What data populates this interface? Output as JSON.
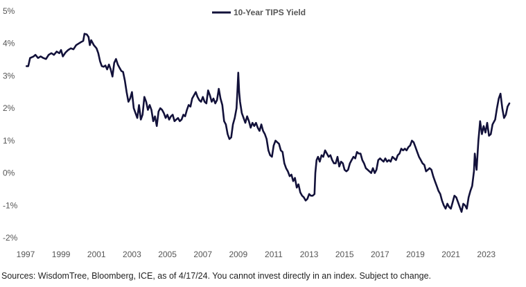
{
  "source_note": "Sources: WisdomTree, Bloomberg, ICE, as of 4/17/24. You cannot invest directly in an index. Subject to change.",
  "colors": {
    "line": "#12113a",
    "text": "#555555"
  },
  "chart_data": {
    "type": "line",
    "title": "",
    "xlabel": "",
    "ylabel": "",
    "legend": {
      "placement": "top-center"
    },
    "grid": false,
    "xlim": [
      1997,
      2024.3
    ],
    "ylim": [
      -2,
      5
    ],
    "x_ticks": [
      1997,
      1999,
      2001,
      2003,
      2005,
      2007,
      2009,
      2011,
      2013,
      2015,
      2017,
      2019,
      2021,
      2023
    ],
    "x_tick_labels": [
      "1997",
      "1999",
      "2001",
      "2003",
      "2005",
      "2007",
      "2009",
      "2011",
      "2013",
      "2015",
      "2017",
      "2019",
      "2021",
      "2023"
    ],
    "y_ticks": [
      -2,
      -1,
      0,
      1,
      2,
      3,
      4,
      5
    ],
    "y_tick_labels": [
      "-2%",
      "-1%",
      "0%",
      "1%",
      "2%",
      "3%",
      "4%",
      "5%"
    ],
    "series": [
      {
        "name": "10-Year TIPS Yield",
        "color": "#12113a",
        "points": [
          [
            1997.05,
            3.3
          ],
          [
            1997.15,
            3.3
          ],
          [
            1997.25,
            3.55
          ],
          [
            1997.45,
            3.6
          ],
          [
            1997.55,
            3.65
          ],
          [
            1997.7,
            3.55
          ],
          [
            1997.85,
            3.6
          ],
          [
            1998.0,
            3.55
          ],
          [
            1998.15,
            3.52
          ],
          [
            1998.3,
            3.65
          ],
          [
            1998.45,
            3.7
          ],
          [
            1998.6,
            3.65
          ],
          [
            1998.75,
            3.75
          ],
          [
            1998.9,
            3.7
          ],
          [
            1999.0,
            3.8
          ],
          [
            1999.1,
            3.6
          ],
          [
            1999.25,
            3.72
          ],
          [
            1999.4,
            3.8
          ],
          [
            1999.55,
            3.85
          ],
          [
            1999.7,
            3.82
          ],
          [
            1999.85,
            3.95
          ],
          [
            2000.0,
            4.0
          ],
          [
            2000.15,
            4.05
          ],
          [
            2000.25,
            4.08
          ],
          [
            2000.32,
            4.3
          ],
          [
            2000.45,
            4.28
          ],
          [
            2000.55,
            4.2
          ],
          [
            2000.62,
            3.95
          ],
          [
            2000.7,
            4.1
          ],
          [
            2000.85,
            3.95
          ],
          [
            2001.0,
            3.85
          ],
          [
            2001.1,
            3.7
          ],
          [
            2001.2,
            3.45
          ],
          [
            2001.3,
            3.3
          ],
          [
            2001.4,
            3.28
          ],
          [
            2001.5,
            3.32
          ],
          [
            2001.6,
            3.2
          ],
          [
            2001.7,
            3.35
          ],
          [
            2001.8,
            3.2
          ],
          [
            2001.9,
            2.98
          ],
          [
            2002.0,
            3.4
          ],
          [
            2002.1,
            3.52
          ],
          [
            2002.2,
            3.35
          ],
          [
            2002.3,
            3.25
          ],
          [
            2002.4,
            3.15
          ],
          [
            2002.5,
            3.12
          ],
          [
            2002.6,
            2.85
          ],
          [
            2002.7,
            2.5
          ],
          [
            2002.8,
            2.2
          ],
          [
            2002.9,
            2.3
          ],
          [
            2003.0,
            2.5
          ],
          [
            2003.1,
            2.0
          ],
          [
            2003.2,
            1.85
          ],
          [
            2003.3,
            1.7
          ],
          [
            2003.4,
            2.1
          ],
          [
            2003.5,
            1.65
          ],
          [
            2003.6,
            1.8
          ],
          [
            2003.7,
            2.35
          ],
          [
            2003.8,
            2.2
          ],
          [
            2003.9,
            1.95
          ],
          [
            2004.0,
            2.1
          ],
          [
            2004.1,
            1.95
          ],
          [
            2004.2,
            1.6
          ],
          [
            2004.3,
            1.75
          ],
          [
            2004.4,
            1.45
          ],
          [
            2004.5,
            1.9
          ],
          [
            2004.6,
            2.0
          ],
          [
            2004.7,
            1.95
          ],
          [
            2004.8,
            1.85
          ],
          [
            2004.9,
            1.7
          ],
          [
            2005.0,
            1.8
          ],
          [
            2005.1,
            1.65
          ],
          [
            2005.2,
            1.75
          ],
          [
            2005.3,
            1.8
          ],
          [
            2005.4,
            1.6
          ],
          [
            2005.5,
            1.65
          ],
          [
            2005.6,
            1.7
          ],
          [
            2005.7,
            1.6
          ],
          [
            2005.8,
            1.65
          ],
          [
            2005.9,
            1.8
          ],
          [
            2006.0,
            1.75
          ],
          [
            2006.1,
            1.95
          ],
          [
            2006.2,
            2.1
          ],
          [
            2006.3,
            2.05
          ],
          [
            2006.4,
            2.3
          ],
          [
            2006.5,
            2.4
          ],
          [
            2006.6,
            2.5
          ],
          [
            2006.7,
            2.35
          ],
          [
            2006.8,
            2.25
          ],
          [
            2006.9,
            2.2
          ],
          [
            2007.0,
            2.35
          ],
          [
            2007.1,
            2.2
          ],
          [
            2007.2,
            2.15
          ],
          [
            2007.3,
            2.55
          ],
          [
            2007.4,
            2.4
          ],
          [
            2007.5,
            2.2
          ],
          [
            2007.6,
            2.3
          ],
          [
            2007.7,
            2.15
          ],
          [
            2007.8,
            2.25
          ],
          [
            2007.9,
            2.6
          ],
          [
            2008.0,
            2.3
          ],
          [
            2008.1,
            2.1
          ],
          [
            2008.2,
            1.6
          ],
          [
            2008.3,
            1.5
          ],
          [
            2008.4,
            1.2
          ],
          [
            2008.5,
            1.05
          ],
          [
            2008.6,
            1.1
          ],
          [
            2008.7,
            1.5
          ],
          [
            2008.8,
            1.7
          ],
          [
            2008.9,
            2.0
          ],
          [
            2008.95,
            2.5
          ],
          [
            2009.0,
            3.1
          ],
          [
            2009.05,
            2.5
          ],
          [
            2009.1,
            2.2
          ],
          [
            2009.2,
            1.85
          ],
          [
            2009.3,
            1.7
          ],
          [
            2009.4,
            1.55
          ],
          [
            2009.5,
            1.75
          ],
          [
            2009.6,
            1.6
          ],
          [
            2009.7,
            1.4
          ],
          [
            2009.8,
            1.55
          ],
          [
            2009.9,
            1.45
          ],
          [
            2010.0,
            1.55
          ],
          [
            2010.1,
            1.4
          ],
          [
            2010.2,
            1.3
          ],
          [
            2010.3,
            1.5
          ],
          [
            2010.4,
            1.3
          ],
          [
            2010.5,
            1.2
          ],
          [
            2010.6,
            1.05
          ],
          [
            2010.7,
            0.7
          ],
          [
            2010.8,
            0.55
          ],
          [
            2010.9,
            0.5
          ],
          [
            2011.0,
            0.85
          ],
          [
            2011.1,
            1.0
          ],
          [
            2011.2,
            0.95
          ],
          [
            2011.3,
            0.9
          ],
          [
            2011.4,
            0.7
          ],
          [
            2011.5,
            0.65
          ],
          [
            2011.6,
            0.3
          ],
          [
            2011.7,
            0.15
          ],
          [
            2011.8,
            0.05
          ],
          [
            2011.9,
            -0.1
          ],
          [
            2012.0,
            -0.05
          ],
          [
            2012.1,
            -0.25
          ],
          [
            2012.2,
            -0.15
          ],
          [
            2012.3,
            -0.45
          ],
          [
            2012.4,
            -0.35
          ],
          [
            2012.5,
            -0.6
          ],
          [
            2012.6,
            -0.7
          ],
          [
            2012.7,
            -0.75
          ],
          [
            2012.8,
            -0.85
          ],
          [
            2012.9,
            -0.8
          ],
          [
            2013.0,
            -0.65
          ],
          [
            2013.1,
            -0.7
          ],
          [
            2013.2,
            -0.7
          ],
          [
            2013.3,
            -0.65
          ],
          [
            2013.35,
            0.0
          ],
          [
            2013.42,
            0.4
          ],
          [
            2013.5,
            0.5
          ],
          [
            2013.6,
            0.35
          ],
          [
            2013.7,
            0.55
          ],
          [
            2013.8,
            0.5
          ],
          [
            2013.9,
            0.7
          ],
          [
            2014.0,
            0.6
          ],
          [
            2014.1,
            0.5
          ],
          [
            2014.2,
            0.55
          ],
          [
            2014.3,
            0.4
          ],
          [
            2014.4,
            0.3
          ],
          [
            2014.5,
            0.3
          ],
          [
            2014.6,
            0.5
          ],
          [
            2014.7,
            0.2
          ],
          [
            2014.8,
            0.35
          ],
          [
            2014.9,
            0.3
          ],
          [
            2015.0,
            0.1
          ],
          [
            2015.1,
            0.05
          ],
          [
            2015.2,
            0.1
          ],
          [
            2015.3,
            0.3
          ],
          [
            2015.4,
            0.4
          ],
          [
            2015.5,
            0.5
          ],
          [
            2015.6,
            0.45
          ],
          [
            2015.7,
            0.65
          ],
          [
            2015.8,
            0.6
          ],
          [
            2015.9,
            0.6
          ],
          [
            2016.0,
            0.4
          ],
          [
            2016.1,
            0.3
          ],
          [
            2016.2,
            0.15
          ],
          [
            2016.3,
            0.1
          ],
          [
            2016.4,
            0.05
          ],
          [
            2016.5,
            0.0
          ],
          [
            2016.6,
            0.15
          ],
          [
            2016.7,
            0.0
          ],
          [
            2016.8,
            0.1
          ],
          [
            2016.9,
            0.4
          ],
          [
            2017.0,
            0.45
          ],
          [
            2017.1,
            0.4
          ],
          [
            2017.2,
            0.35
          ],
          [
            2017.3,
            0.45
          ],
          [
            2017.4,
            0.35
          ],
          [
            2017.5,
            0.4
          ],
          [
            2017.6,
            0.35
          ],
          [
            2017.7,
            0.5
          ],
          [
            2017.8,
            0.45
          ],
          [
            2017.9,
            0.4
          ],
          [
            2018.0,
            0.55
          ],
          [
            2018.1,
            0.6
          ],
          [
            2018.2,
            0.75
          ],
          [
            2018.3,
            0.7
          ],
          [
            2018.4,
            0.75
          ],
          [
            2018.5,
            0.7
          ],
          [
            2018.6,
            0.8
          ],
          [
            2018.7,
            0.85
          ],
          [
            2018.8,
            1.0
          ],
          [
            2018.9,
            0.95
          ],
          [
            2019.0,
            0.8
          ],
          [
            2019.1,
            0.65
          ],
          [
            2019.2,
            0.5
          ],
          [
            2019.3,
            0.4
          ],
          [
            2019.4,
            0.3
          ],
          [
            2019.5,
            0.25
          ],
          [
            2019.6,
            0.05
          ],
          [
            2019.7,
            0.1
          ],
          [
            2019.8,
            0.15
          ],
          [
            2019.9,
            0.1
          ],
          [
            2020.0,
            -0.1
          ],
          [
            2020.1,
            -0.25
          ],
          [
            2020.2,
            -0.4
          ],
          [
            2020.3,
            -0.55
          ],
          [
            2020.4,
            -0.65
          ],
          [
            2020.5,
            -0.85
          ],
          [
            2020.6,
            -1.0
          ],
          [
            2020.7,
            -1.1
          ],
          [
            2020.8,
            -0.95
          ],
          [
            2020.9,
            -1.05
          ],
          [
            2021.0,
            -1.1
          ],
          [
            2021.1,
            -0.9
          ],
          [
            2021.2,
            -0.7
          ],
          [
            2021.3,
            -0.75
          ],
          [
            2021.4,
            -0.9
          ],
          [
            2021.5,
            -1.05
          ],
          [
            2021.6,
            -1.2
          ],
          [
            2021.7,
            -0.95
          ],
          [
            2021.8,
            -1.0
          ],
          [
            2021.9,
            -1.1
          ],
          [
            2022.0,
            -0.75
          ],
          [
            2022.1,
            -0.55
          ],
          [
            2022.2,
            -0.4
          ],
          [
            2022.3,
            0.05
          ],
          [
            2022.35,
            0.6
          ],
          [
            2022.45,
            0.1
          ],
          [
            2022.55,
            1.0
          ],
          [
            2022.65,
            1.6
          ],
          [
            2022.75,
            1.2
          ],
          [
            2022.85,
            1.45
          ],
          [
            2022.95,
            1.25
          ],
          [
            2023.05,
            1.55
          ],
          [
            2023.15,
            1.15
          ],
          [
            2023.25,
            1.2
          ],
          [
            2023.35,
            1.5
          ],
          [
            2023.5,
            1.65
          ],
          [
            2023.6,
            2.0
          ],
          [
            2023.7,
            2.3
          ],
          [
            2023.8,
            2.45
          ],
          [
            2023.9,
            2.0
          ],
          [
            2024.0,
            1.7
          ],
          [
            2024.1,
            1.8
          ],
          [
            2024.2,
            2.05
          ],
          [
            2024.3,
            2.15
          ]
        ]
      }
    ]
  }
}
